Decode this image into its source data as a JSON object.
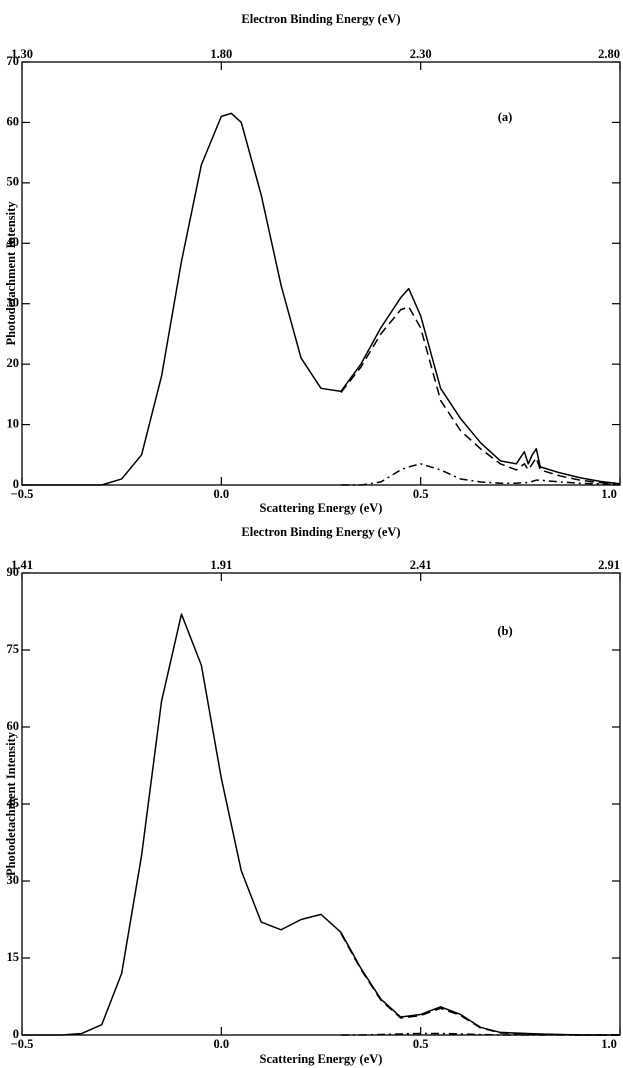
{
  "chart_data": [
    {
      "type": "line",
      "x2_label": "Electron Binding Energy (eV)",
      "x_label": "Scattering Energy (eV)",
      "y_label": "Photodetachment Intensity",
      "annotation": "(a)",
      "xlim": [
        -0.5,
        1.0
      ],
      "xticks": [
        {
          "value": -0.5,
          "label": "−0.5"
        },
        {
          "value": 0.0,
          "label": "0.0"
        },
        0.5,
        {
          "value": 1.0,
          "label": "1.0"
        }
      ],
      "x2lim": [
        1.3,
        2.8
      ],
      "x2ticks": [
        {
          "value": 1.3,
          "label": "1.30"
        },
        {
          "value": 1.8,
          "label": "1.80"
        },
        {
          "value": 2.3,
          "label": "2.30"
        },
        {
          "value": 2.8,
          "label": "2.80"
        }
      ],
      "ylim": [
        0,
        70
      ],
      "yticks": [
        0,
        10,
        20,
        30,
        40,
        50,
        60,
        70
      ],
      "x": [
        -0.5,
        -0.4,
        -0.3,
        -0.25,
        -0.2,
        -0.15,
        -0.1,
        -0.05,
        0,
        0.025,
        0.05,
        0.1,
        0.15,
        0.2,
        0.25,
        0.3,
        0.35,
        0.4,
        0.45,
        0.47,
        0.5,
        0.55,
        0.6,
        0.65,
        0.7,
        0.74,
        0.76,
        0.77,
        0.78,
        0.79,
        0.8,
        0.85,
        0.9,
        0.95,
        1.0
      ],
      "series": [
        {
          "color": "#000000",
          "style": "solid",
          "values": [
            0,
            0,
            0,
            1,
            5,
            18,
            37,
            53,
            61,
            61.5,
            60,
            48,
            33,
            21,
            16,
            15.5,
            20,
            26,
            31,
            32.5,
            28,
            16,
            11,
            7,
            4,
            3.5,
            5.5,
            3.5,
            5,
            6,
            3,
            2,
            1.2,
            0.6,
            0.2
          ]
        },
        {
          "color": "#000000",
          "style": "dashed",
          "values": [
            null,
            null,
            null,
            null,
            null,
            null,
            null,
            null,
            null,
            null,
            null,
            null,
            null,
            null,
            null,
            15.3,
            19.5,
            25,
            29,
            29.5,
            26,
            14,
            9,
            6,
            3.5,
            2.5,
            3.5,
            2.5,
            3.5,
            4.5,
            2.5,
            1.5,
            0.8,
            0.4,
            0.1
          ]
        },
        {
          "color": "#000000",
          "style": "dashdot",
          "values": [
            null,
            null,
            null,
            null,
            null,
            null,
            null,
            null,
            null,
            null,
            null,
            null,
            null,
            null,
            null,
            0,
            0,
            0.5,
            2.5,
            3,
            3.5,
            2.5,
            1,
            0.5,
            0.3,
            0.3,
            0.4,
            0.4,
            0.6,
            0.8,
            0.8,
            0.5,
            0.3,
            0.2,
            0.1
          ]
        }
      ]
    },
    {
      "type": "line",
      "x2_label": "Electron Binding Energy (eV)",
      "x_label": "Scattering Energy (eV)",
      "y_label": "Photodetachment Intensity",
      "annotation": "(b)",
      "xlim": [
        -0.5,
        1.0
      ],
      "xticks": [
        {
          "value": -0.5,
          "label": "−0.5"
        },
        {
          "value": 0.0,
          "label": "0.0"
        },
        0.5,
        {
          "value": 1.0,
          "label": "1.0"
        }
      ],
      "x2lim": [
        1.41,
        2.91
      ],
      "x2ticks": [
        1.41,
        1.91,
        2.41,
        2.91
      ],
      "ylim": [
        0,
        90
      ],
      "yticks": [
        0,
        15,
        30,
        45,
        60,
        75,
        90
      ],
      "x": [
        -0.5,
        -0.4,
        -0.35,
        -0.3,
        -0.25,
        -0.2,
        -0.15,
        -0.1,
        -0.05,
        0,
        0.05,
        0.1,
        0.15,
        0.2,
        0.25,
        0.3,
        0.35,
        0.4,
        0.45,
        0.5,
        0.55,
        0.6,
        0.65,
        0.7,
        0.8,
        0.9,
        1.0
      ],
      "series": [
        {
          "color": "#000000",
          "style": "solid",
          "values": [
            0,
            0,
            0.3,
            2,
            12,
            35,
            65,
            82,
            72,
            50,
            32,
            22,
            20.5,
            22.5,
            23.5,
            20,
            13,
            7,
            3.5,
            4,
            5.5,
            4,
            1.5,
            0.5,
            0.2,
            0,
            0
          ]
        },
        {
          "color": "#000000",
          "style": "dashed",
          "values": [
            null,
            null,
            null,
            null,
            null,
            null,
            null,
            null,
            null,
            null,
            null,
            null,
            null,
            null,
            null,
            19.8,
            12.8,
            6.8,
            3.3,
            3.8,
            5.2,
            3.8,
            1.4,
            0.4,
            0.1,
            0,
            0
          ]
        },
        {
          "color": "#000000",
          "style": "dashdot",
          "values": [
            null,
            null,
            null,
            null,
            null,
            null,
            null,
            null,
            null,
            null,
            null,
            null,
            null,
            null,
            null,
            0,
            0,
            0.1,
            0.2,
            0.3,
            0.3,
            0.2,
            0.1,
            0,
            0,
            0,
            0
          ]
        }
      ]
    }
  ]
}
